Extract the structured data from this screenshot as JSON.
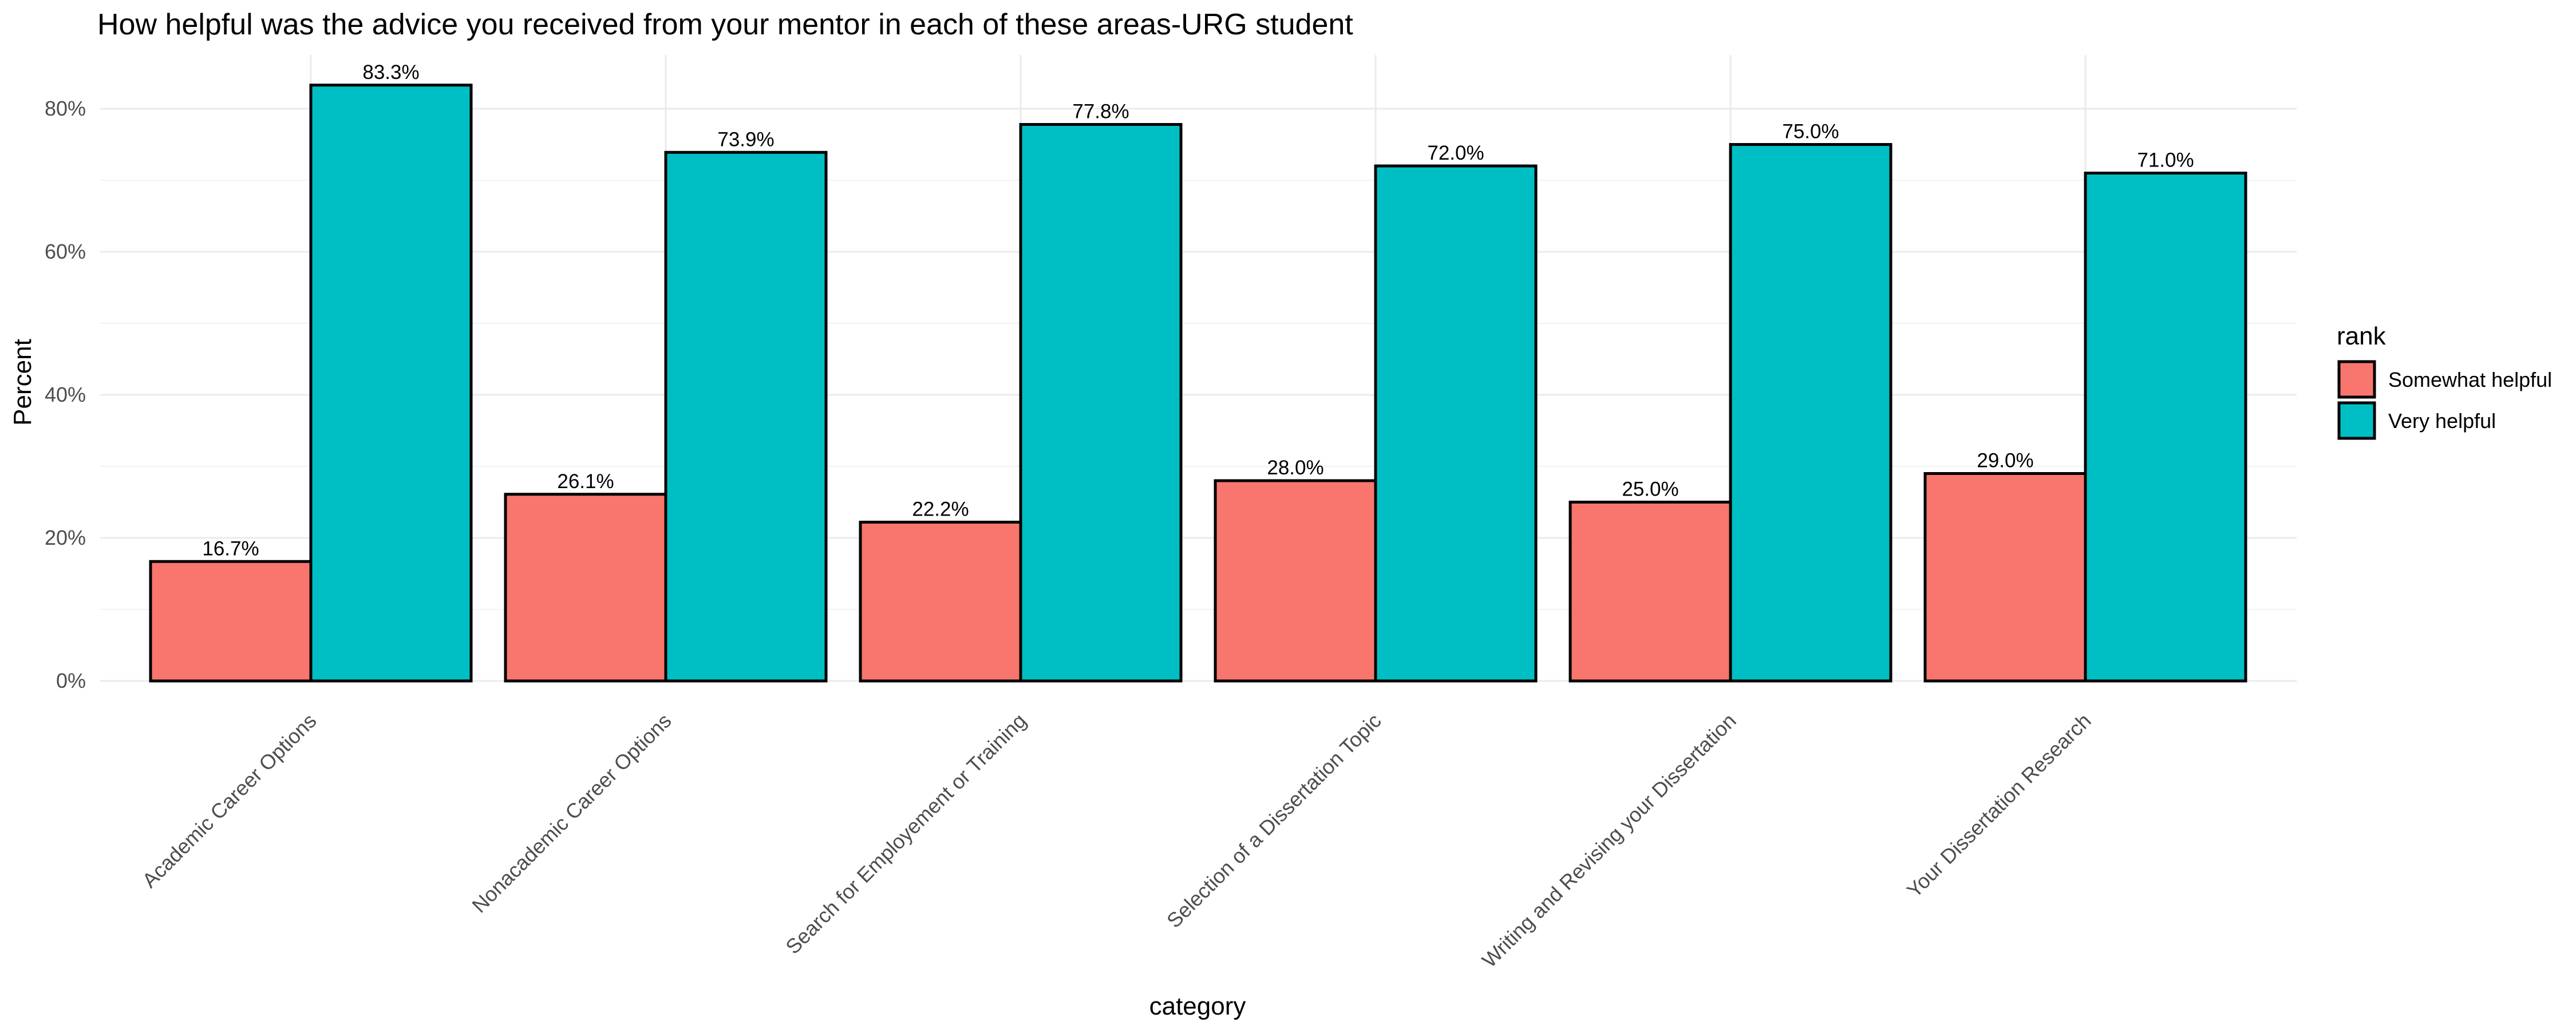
{
  "chart_data": {
    "type": "bar",
    "title": "How helpful was the advice you received from your mentor in each of these areas-URG student",
    "xlabel": "category",
    "ylabel": "Percent",
    "categories": [
      "Academic Career Options",
      "Nonacademic Career Options",
      "Search for Employement or Training",
      "Selection of a Dissertation Topic",
      "Writing and Revising your Dissertation",
      "Your Dissertation Research"
    ],
    "series": [
      {
        "name": "Somewhat helpful",
        "color": "#F8766D",
        "values": [
          16.7,
          26.1,
          22.2,
          28.0,
          25.0,
          29.0
        ],
        "labels": [
          "16.7%",
          "26.1%",
          "22.2%",
          "28.0%",
          "25.0%",
          "29.0%"
        ]
      },
      {
        "name": "Very helpful",
        "color": "#00BFC4",
        "values": [
          83.3,
          73.9,
          77.8,
          72.0,
          75.0,
          71.0
        ],
        "labels": [
          "83.3%",
          "73.9%",
          "77.8%",
          "72.0%",
          "75.0%",
          "71.0%"
        ]
      }
    ],
    "yticks": [
      0,
      20,
      40,
      60,
      80
    ],
    "ytick_labels": [
      "0%",
      "20%",
      "40%",
      "60%",
      "80%"
    ],
    "ylim": [
      0,
      87.5
    ],
    "grid": true,
    "legend": {
      "title": "rank",
      "position": "right"
    }
  }
}
